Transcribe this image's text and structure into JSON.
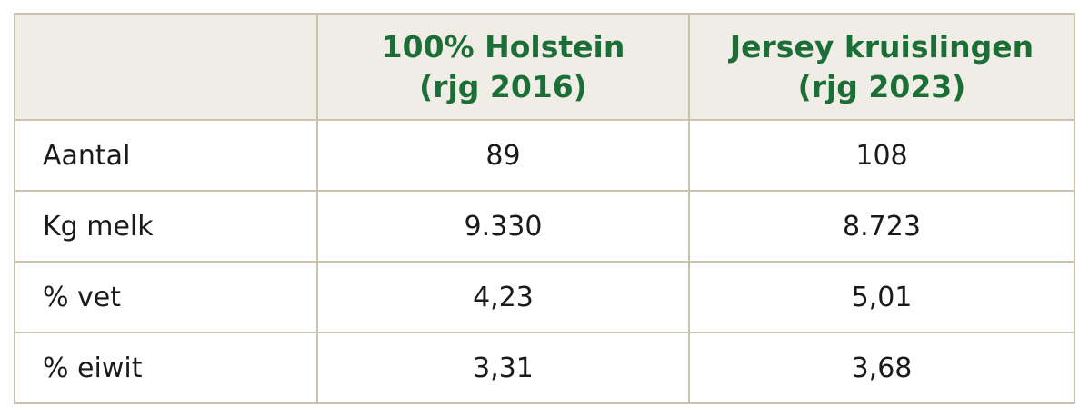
{
  "table": {
    "header": [
      [
        "100% Holstein",
        "(rjg 2016)"
      ],
      [
        "Jersey kruislingen",
        "(rjg 2023)"
      ]
    ],
    "rows": [
      [
        "Aantal",
        "89",
        "108"
      ],
      [
        "Kg melk",
        "9.330",
        "8.723"
      ],
      [
        "% vet",
        "4,23",
        "5,01"
      ],
      [
        "% eiwit",
        "3,31",
        "3,68"
      ]
    ]
  }
}
